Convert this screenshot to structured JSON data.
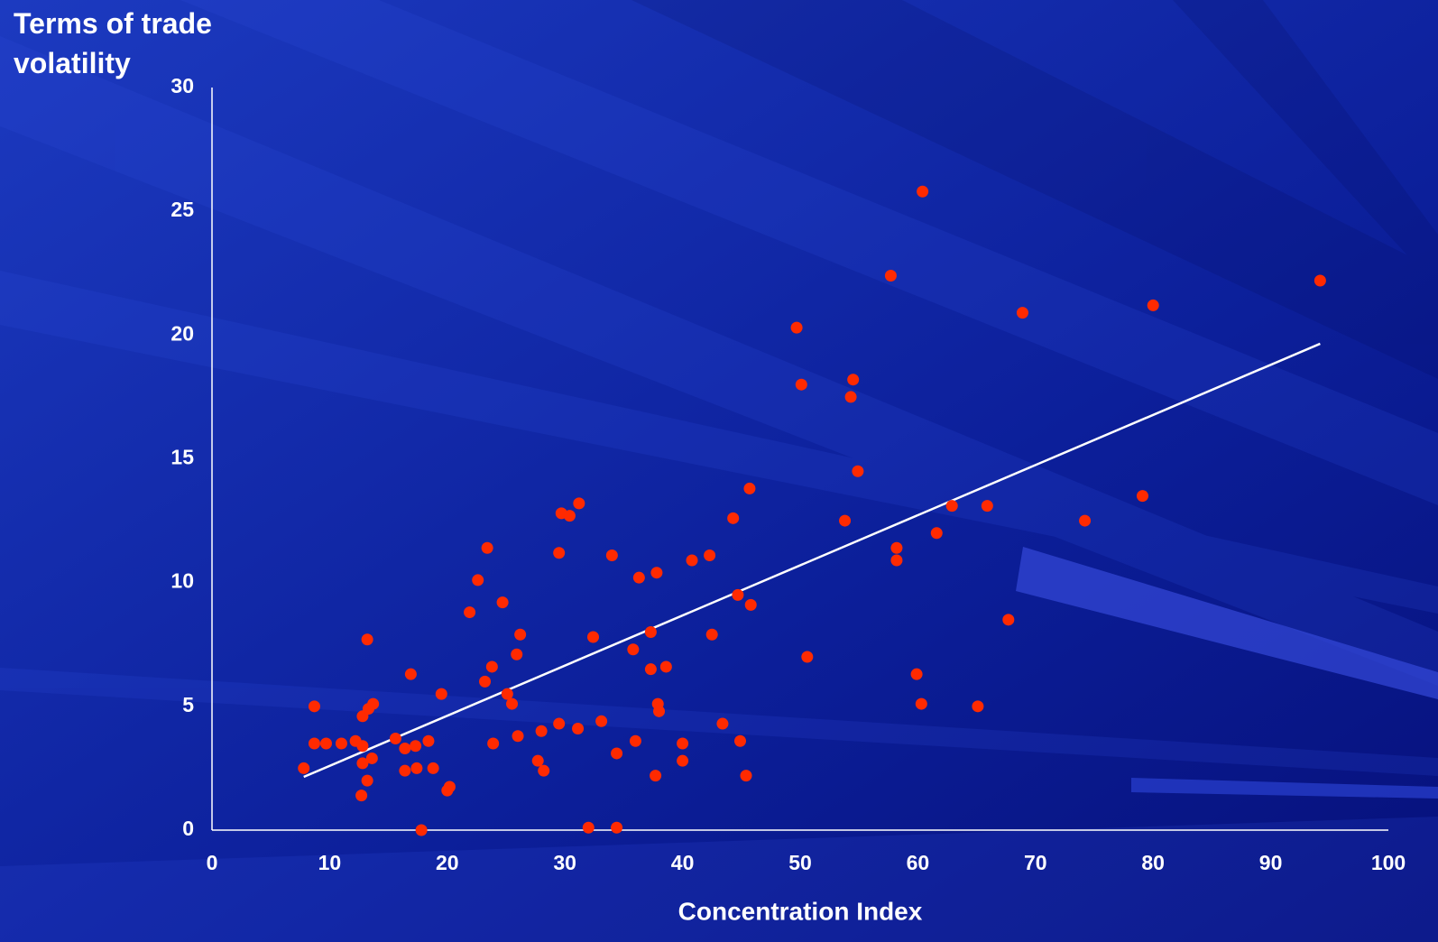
{
  "chart_data": {
    "type": "scatter",
    "ylabel": "Terms of trade volatility",
    "xlabel": "Concentration Index",
    "color": "#ff2a00",
    "x": [
      7.8,
      8.7,
      8.7,
      9.7,
      11.0,
      12.2,
      12.8,
      12.8,
      12.8,
      12.7,
      13.2,
      13.2,
      13.3,
      13.7,
      13.6,
      15.6,
      16.4,
      16.4,
      16.9,
      17.3,
      17.4,
      17.8,
      18.4,
      18.8,
      19.5,
      20.0,
      20.2,
      21.9,
      22.6,
      23.2,
      23.4,
      23.8,
      23.9,
      24.7,
      25.1,
      25.5,
      25.9,
      26.0,
      26.2,
      27.7,
      28.0,
      28.2,
      29.5,
      29.5,
      29.7,
      30.4,
      31.1,
      31.2,
      32.0,
      32.4,
      33.1,
      34.0,
      34.4,
      34.4,
      35.8,
      36.0,
      36.3,
      37.3,
      37.3,
      37.7,
      37.8,
      37.9,
      38.0,
      38.6,
      40.0,
      40.0,
      40.8,
      42.3,
      42.5,
      43.4,
      44.3,
      44.7,
      44.9,
      45.4,
      45.7,
      45.8,
      49.7,
      50.1,
      50.6,
      53.8,
      54.3,
      54.5,
      54.9,
      57.7,
      58.2,
      58.2,
      59.9,
      60.3,
      60.4,
      61.6,
      62.9,
      65.1,
      65.9,
      67.7,
      68.9,
      74.2,
      79.1,
      80.0,
      94.2
    ],
    "values": [
      2.5,
      5.0,
      3.5,
      3.5,
      3.5,
      3.6,
      3.4,
      4.6,
      2.7,
      1.4,
      2.0,
      7.7,
      4.9,
      5.1,
      2.9,
      3.7,
      3.3,
      2.4,
      6.3,
      3.4,
      2.5,
      0.0,
      3.6,
      2.5,
      5.5,
      1.6,
      1.75,
      8.8,
      10.1,
      6.0,
      11.4,
      6.6,
      3.5,
      9.2,
      5.5,
      5.1,
      7.1,
      3.8,
      7.9,
      2.8,
      4.0,
      2.4,
      4.3,
      11.2,
      12.8,
      12.7,
      4.1,
      13.2,
      0.1,
      7.8,
      4.4,
      11.1,
      3.1,
      0.1,
      7.3,
      3.6,
      10.2,
      8.0,
      6.5,
      2.2,
      10.4,
      5.1,
      4.8,
      6.6,
      3.5,
      2.8,
      10.9,
      11.1,
      7.9,
      4.3,
      12.6,
      9.5,
      3.6,
      2.2,
      13.8,
      9.1,
      20.3,
      18.0,
      7.0,
      12.5,
      17.5,
      18.2,
      14.5,
      22.4,
      11.4,
      10.9,
      6.3,
      5.1,
      25.8,
      12.0,
      13.1,
      5.0,
      13.1,
      8.5,
      20.9,
      12.5,
      13.5,
      21.2,
      22.2
    ],
    "trendline": {
      "color": "#ffffff",
      "x": [
        7.8,
        94.2
      ],
      "values": [
        2.15,
        19.65
      ]
    },
    "xlim": [
      0,
      100
    ],
    "xticks": [
      0,
      10,
      20,
      30,
      40,
      50,
      60,
      70,
      80,
      90,
      100
    ],
    "ylim": [
      0,
      30
    ],
    "yticks": [
      0,
      5,
      10,
      15,
      20,
      25,
      30
    ],
    "grid": false
  }
}
